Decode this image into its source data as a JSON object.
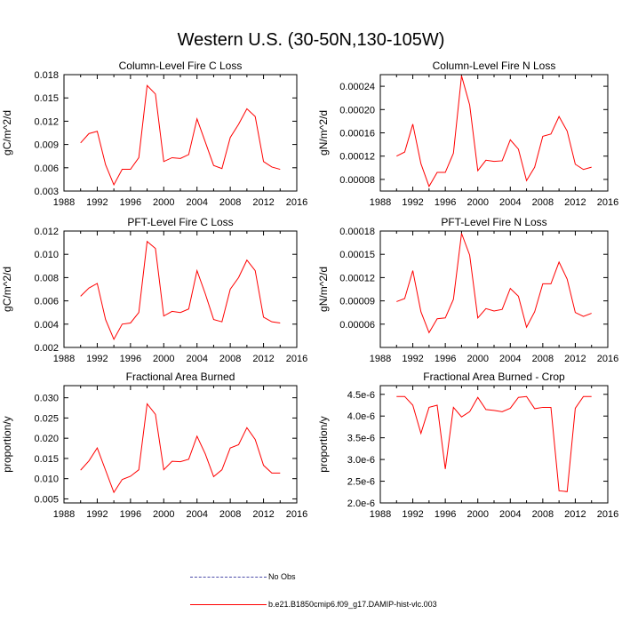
{
  "title": "Western U.S. (30-50N,130-105W)",
  "legend": [
    {
      "label": "No Obs",
      "color": "#4a4aa8",
      "style": "dashed"
    },
    {
      "label": "b.e21.B1850cmip6.f09_g17.DAMIP-hist-vlc.003",
      "color": "#ff0000",
      "style": "solid"
    }
  ],
  "chart_data": [
    {
      "type": "line",
      "title": "Column-Level Fire C Loss",
      "ylabel": "gC/m^2/d",
      "xlim": [
        1988,
        2016
      ],
      "xticks": [
        1988,
        1992,
        1996,
        2000,
        2004,
        2008,
        2012,
        2016
      ],
      "ylim": [
        0.003,
        0.018
      ],
      "yticks": [
        0.003,
        0.006,
        0.009,
        0.012,
        0.015,
        0.018
      ],
      "ytick_labels": [
        "0.003",
        "0.006",
        "0.009",
        "0.012",
        "0.015",
        "0.018"
      ],
      "series": [
        {
          "name": "b.e21.B1850cmip6.f09_g17.DAMIP-hist-vlc.003",
          "color": "#ff0000",
          "x": [
            1990,
            1991,
            1992,
            1993,
            1994,
            1995,
            1996,
            1997,
            1998,
            1999,
            2000,
            2001,
            2002,
            2003,
            2004,
            2005,
            2006,
            2007,
            2008,
            2009,
            2010,
            2011,
            2012,
            2013,
            2014
          ],
          "values": [
            0.0092,
            0.0104,
            0.0107,
            0.0064,
            0.0038,
            0.0058,
            0.0058,
            0.0073,
            0.0166,
            0.0155,
            0.0068,
            0.0073,
            0.0072,
            0.0077,
            0.0123,
            0.0093,
            0.0063,
            0.0059,
            0.0099,
            0.0116,
            0.0136,
            0.0126,
            0.0068,
            0.0061,
            0.0058
          ]
        }
      ]
    },
    {
      "type": "line",
      "title": "Column-Level Fire N Loss",
      "ylabel": "gN/m^2/d",
      "xlim": [
        1988,
        2016
      ],
      "xticks": [
        1988,
        1992,
        1996,
        2000,
        2004,
        2008,
        2012,
        2016
      ],
      "ylim": [
        6e-05,
        0.00026
      ],
      "yticks": [
        8e-05,
        0.00012,
        0.00016,
        0.0002,
        0.00024
      ],
      "ytick_labels": [
        "0.00008",
        "0.00012",
        "0.00016",
        "0.00020",
        "0.00024"
      ],
      "series": [
        {
          "name": "b.e21.B1850cmip6.f09_g17.DAMIP-hist-vlc.003",
          "color": "#ff0000",
          "x": [
            1990,
            1991,
            1992,
            1993,
            1994,
            1995,
            1996,
            1997,
            1998,
            1999,
            2000,
            2001,
            2002,
            2003,
            2004,
            2005,
            2006,
            2007,
            2008,
            2009,
            2010,
            2011,
            2012,
            2013,
            2014
          ],
          "values": [
            0.00012,
            0.000127,
            0.000175,
            0.000107,
            6.8e-05,
            9.2e-05,
            9.2e-05,
            0.000125,
            0.000258,
            0.000208,
            9.5e-05,
            0.000113,
            0.000111,
            0.000112,
            0.000148,
            0.000132,
            7.8e-05,
            0.000101,
            0.000154,
            0.000158,
            0.000188,
            0.000163,
            0.000106,
            9.7e-05,
            0.000101
          ]
        }
      ]
    },
    {
      "type": "line",
      "title": "PFT-Level Fire C Loss",
      "ylabel": "gC/m^2/d",
      "xlim": [
        1988,
        2016
      ],
      "xticks": [
        1988,
        1992,
        1996,
        2000,
        2004,
        2008,
        2012,
        2016
      ],
      "ylim": [
        0.002,
        0.012
      ],
      "yticks": [
        0.002,
        0.004,
        0.006,
        0.008,
        0.01,
        0.012
      ],
      "ytick_labels": [
        "0.002",
        "0.004",
        "0.006",
        "0.008",
        "0.010",
        "0.012"
      ],
      "series": [
        {
          "name": "b.e21.B1850cmip6.f09_g17.DAMIP-hist-vlc.003",
          "color": "#ff0000",
          "x": [
            1990,
            1991,
            1992,
            1993,
            1994,
            1995,
            1996,
            1997,
            1998,
            1999,
            2000,
            2001,
            2002,
            2003,
            2004,
            2005,
            2006,
            2007,
            2008,
            2009,
            2010,
            2011,
            2012,
            2013,
            2014
          ],
          "values": [
            0.0064,
            0.0071,
            0.0075,
            0.0044,
            0.0027,
            0.004,
            0.0041,
            0.005,
            0.0111,
            0.0105,
            0.0047,
            0.0051,
            0.005,
            0.0053,
            0.0086,
            0.0066,
            0.0044,
            0.0042,
            0.007,
            0.008,
            0.0095,
            0.0086,
            0.0046,
            0.0042,
            0.0041
          ]
        }
      ]
    },
    {
      "type": "line",
      "title": "PFT-Level Fire N Loss",
      "ylabel": "gN/m^2/d",
      "xlim": [
        1988,
        2016
      ],
      "xticks": [
        1988,
        1992,
        1996,
        2000,
        2004,
        2008,
        2012,
        2016
      ],
      "ylim": [
        3e-05,
        0.00018
      ],
      "yticks": [
        3e-05,
        6e-05,
        9e-05,
        0.00012,
        0.00015,
        0.00018
      ],
      "ytick_labels": [
        "",
        "0.00006",
        "0.00009",
        "0.00012",
        "0.00015",
        "0.00018"
      ],
      "series": [
        {
          "name": "b.e21.B1850cmip6.f09_g17.DAMIP-hist-vlc.003",
          "color": "#ff0000",
          "x": [
            1990,
            1991,
            1992,
            1993,
            1994,
            1995,
            1996,
            1997,
            1998,
            1999,
            2000,
            2001,
            2002,
            2003,
            2004,
            2005,
            2006,
            2007,
            2008,
            2009,
            2010,
            2011,
            2012,
            2013,
            2014
          ],
          "values": [
            8.9e-05,
            9.3e-05,
            0.000129,
            7.6e-05,
            4.9e-05,
            6.7e-05,
            6.8e-05,
            9.2e-05,
            0.000177,
            0.000149,
            6.8e-05,
            8e-05,
            7.7e-05,
            7.9e-05,
            0.000106,
            9.6e-05,
            5.6e-05,
            7.6e-05,
            0.000112,
            0.000112,
            0.00014,
            0.000118,
            7.5e-05,
            7e-05,
            7.4e-05
          ]
        }
      ]
    },
    {
      "type": "line",
      "title": "Fractional Area Burned",
      "ylabel": "proportion/y",
      "xlim": [
        1988,
        2016
      ],
      "xticks": [
        1988,
        1992,
        1996,
        2000,
        2004,
        2008,
        2012,
        2016
      ],
      "ylim": [
        0.004,
        0.033
      ],
      "yticks": [
        0.005,
        0.01,
        0.015,
        0.02,
        0.025,
        0.03
      ],
      "ytick_labels": [
        "0.005",
        "0.010",
        "0.015",
        "0.020",
        "0.025",
        "0.030"
      ],
      "series": [
        {
          "name": "b.e21.B1850cmip6.f09_g17.DAMIP-hist-vlc.003",
          "color": "#ff0000",
          "x": [
            1990,
            1991,
            1992,
            1993,
            1994,
            1995,
            1996,
            1997,
            1998,
            1999,
            2000,
            2001,
            2002,
            2003,
            2004,
            2005,
            2006,
            2007,
            2008,
            2009,
            2010,
            2011,
            2012,
            2013,
            2014
          ],
          "values": [
            0.0121,
            0.0144,
            0.0176,
            0.0121,
            0.0066,
            0.0098,
            0.0106,
            0.0122,
            0.0285,
            0.0259,
            0.0122,
            0.0143,
            0.0142,
            0.0148,
            0.0205,
            0.0161,
            0.0105,
            0.0122,
            0.0176,
            0.0184,
            0.0226,
            0.0197,
            0.0133,
            0.0114,
            0.0114
          ]
        }
      ]
    },
    {
      "type": "line",
      "title": "Fractional Area Burned - Crop",
      "ylabel": "proportion/y",
      "xlim": [
        1988,
        2016
      ],
      "xticks": [
        1988,
        1992,
        1996,
        2000,
        2004,
        2008,
        2012,
        2016
      ],
      "ylim": [
        2e-06,
        4.7e-06
      ],
      "yticks": [
        2e-06,
        2.5e-06,
        3e-06,
        3.5e-06,
        4e-06,
        4.5e-06
      ],
      "ytick_labels": [
        "2.0e-6",
        "2.5e-6",
        "3.0e-6",
        "3.5e-6",
        "4.0e-6",
        "4.5e-6"
      ],
      "series": [
        {
          "name": "b.e21.B1850cmip6.f09_g17.DAMIP-hist-vlc.003",
          "color": "#ff0000",
          "x": [
            1990,
            1991,
            1992,
            1993,
            1994,
            1995,
            1996,
            1997,
            1998,
            1999,
            2000,
            2001,
            2002,
            2003,
            2004,
            2005,
            2006,
            2007,
            2008,
            2009,
            2010,
            2011,
            2012,
            2013,
            2014
          ],
          "values": [
            4.45e-06,
            4.45e-06,
            4.25e-06,
            3.6e-06,
            4.2e-06,
            4.25e-06,
            2.78e-06,
            4.2e-06,
            3.98e-06,
            4.1e-06,
            4.43e-06,
            4.15e-06,
            4.13e-06,
            4.1e-06,
            4.18e-06,
            4.43e-06,
            4.45e-06,
            4.17e-06,
            4.2e-06,
            4.2e-06,
            2.28e-06,
            2.26e-06,
            4.18e-06,
            4.45e-06,
            4.45e-06
          ]
        }
      ]
    }
  ]
}
